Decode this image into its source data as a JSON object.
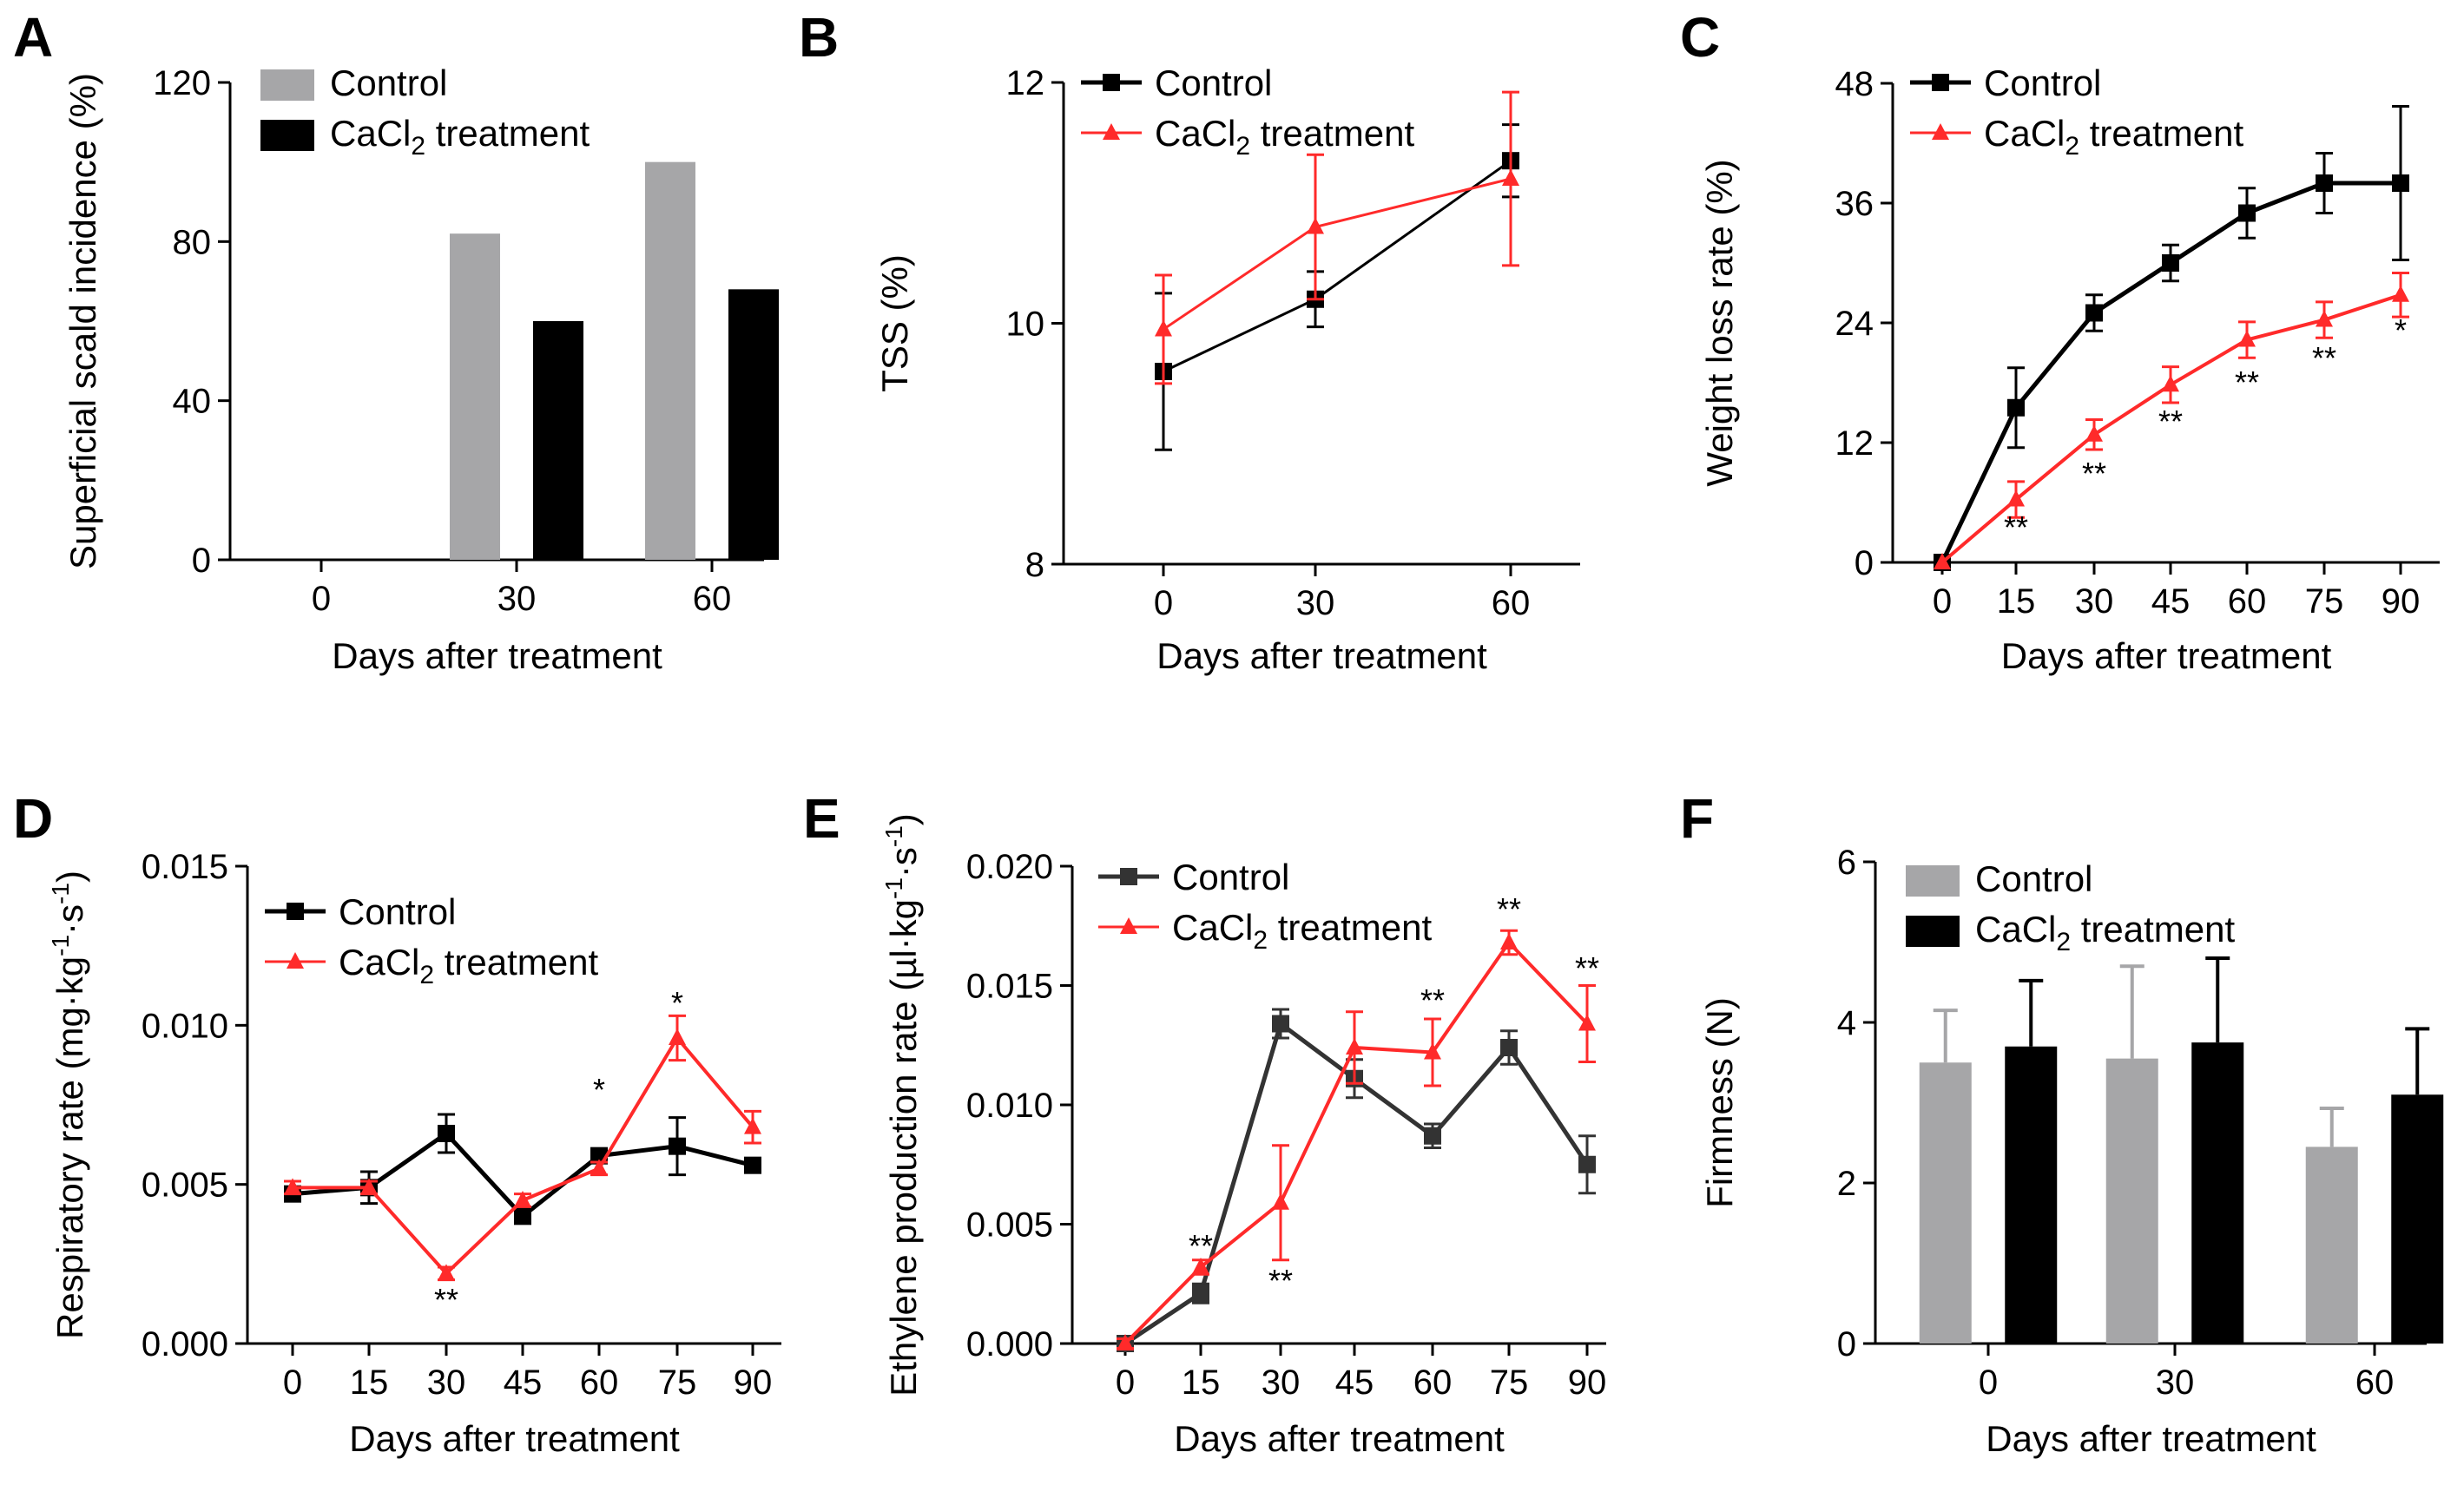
{
  "colors": {
    "control": "#a6a6a8",
    "control_line": "#000000",
    "control_line_E": "#333333",
    "treatment": "#ff2a2a",
    "treatment_bar": "#000000"
  },
  "charts": [
    {
      "type": "bar",
      "panel": "A",
      "xlabel": "Days after treatment",
      "ylabel": "Superficial scald incidence (%)",
      "categories": [
        "0",
        "30",
        "60"
      ],
      "series": [
        {
          "name": "Control",
          "values": [
            0,
            82,
            100
          ],
          "err": null
        },
        {
          "name": "CaCl2 treatment",
          "values": [
            0,
            60,
            68
          ],
          "err": null
        }
      ],
      "ylim": [
        0,
        120
      ],
      "yticks": [
        "0",
        "40",
        "80",
        "120"
      ],
      "legend": {
        "labels": [
          "Control",
          "CaCl",
          "2",
          " treatment"
        ]
      }
    },
    {
      "type": "line",
      "panel": "B",
      "xlabel": "Days after treatment",
      "ylabel": "TSS (%)",
      "x": [
        0,
        30,
        60
      ],
      "xticks": [
        "0",
        "30",
        "60"
      ],
      "series": [
        {
          "name": "Control",
          "values": [
            9.6,
            10.2,
            11.35
          ],
          "err": [
            0.65,
            0.23,
            0.3
          ]
        },
        {
          "name": "CaCl2 treatment",
          "values": [
            9.95,
            10.8,
            11.2
          ],
          "err": [
            0.45,
            0.6,
            0.72
          ]
        }
      ],
      "ylim": [
        8,
        12
      ],
      "yticks": [
        "8",
        "10",
        "12"
      ],
      "legend": {
        "labels": [
          "Control",
          "CaCl",
          "2",
          " treatment"
        ]
      }
    },
    {
      "type": "line",
      "panel": "C",
      "xlabel": "Days after treatment",
      "ylabel": "Weight loss rate (%)",
      "x": [
        0,
        15,
        30,
        45,
        60,
        75,
        90
      ],
      "xticks": [
        "0",
        "15",
        "30",
        "45",
        "60",
        "75",
        "90"
      ],
      "series": [
        {
          "name": "Control",
          "values": [
            0,
            15.5,
            25,
            30,
            35,
            38,
            38
          ],
          "err": [
            0,
            4,
            1.8,
            1.8,
            2.5,
            3,
            7.7
          ]
        },
        {
          "name": "CaCl2 treatment",
          "values": [
            0,
            6.3,
            12.8,
            17.8,
            22.3,
            24.3,
            26.8
          ],
          "err": [
            0,
            1.8,
            1.5,
            1.8,
            1.8,
            1.8,
            2.2
          ]
        }
      ],
      "ylim": [
        0,
        48
      ],
      "yticks": [
        "0",
        "12",
        "24",
        "36",
        "48"
      ],
      "annotations": [
        "**",
        "**",
        "**",
        "**",
        "**",
        "*"
      ],
      "legend": {
        "labels": [
          "Control",
          "CaCl",
          "2",
          " treatment"
        ]
      }
    },
    {
      "type": "line",
      "panel": "D",
      "xlabel": "Days after treatment",
      "ylabel": [
        "Respiratory rate (mg·kg",
        "-1",
        "·s",
        "-1",
        ")"
      ],
      "x": [
        0,
        15,
        30,
        45,
        60,
        75,
        90
      ],
      "xticks": [
        "0",
        "15",
        "30",
        "45",
        "60",
        "75",
        "90"
      ],
      "series": [
        {
          "name": "Control",
          "values": [
            0.0047,
            0.0049,
            0.0066,
            0.004,
            0.0059,
            0.0062,
            0.0056
          ],
          "err": [
            0.0002,
            0.0005,
            0.0006,
            0.0002,
            0.0002,
            0.0009,
            0.0002
          ]
        },
        {
          "name": "CaCl2 treatment",
          "values": [
            0.0049,
            0.0049,
            0.0022,
            0.0045,
            0.0055,
            0.0096,
            0.0068
          ],
          "err": [
            0.0002,
            0.0002,
            0.0002,
            0.0002,
            0.0002,
            0.0007,
            0.0005
          ]
        }
      ],
      "ylim": [
        0,
        0.015
      ],
      "yticks": [
        "0.000",
        "0.005",
        "0.010",
        "0.015"
      ],
      "annotations": [
        "**",
        "*",
        "*"
      ],
      "legend": {
        "labels": [
          "Control",
          "CaCl",
          "2",
          " treatment"
        ]
      }
    },
    {
      "type": "line",
      "panel": "E",
      "xlabel": "Days after treatment",
      "ylabel": [
        "Ethylene production rate (µl·kg",
        "-1",
        "·s",
        "-1",
        ")"
      ],
      "x": [
        0,
        15,
        30,
        45,
        60,
        75,
        90
      ],
      "xticks": [
        "0",
        "15",
        "30",
        "45",
        "60",
        "75",
        "90"
      ],
      "series": [
        {
          "name": "Control",
          "values": [
            0,
            0.0021,
            0.0134,
            0.0111,
            0.0087,
            0.0124,
            0.0075
          ],
          "err": [
            0.0002,
            0.0004,
            0.0006,
            0.0008,
            0.0005,
            0.0007,
            0.0012
          ]
        },
        {
          "name": "CaCl2 treatment",
          "values": [
            0,
            0.0032,
            0.0059,
            0.0124,
            0.0122,
            0.0168,
            0.0134
          ],
          "err": [
            0.0002,
            0.0003,
            0.0024,
            0.0015,
            0.0014,
            0.0005,
            0.0016
          ]
        }
      ],
      "ylim": [
        0,
        0.02
      ],
      "yticks": [
        "0.000",
        "0.005",
        "0.010",
        "0.015",
        "0.020"
      ],
      "annotations": [
        "**",
        "**",
        "**",
        "**",
        "**"
      ],
      "legend": {
        "labels": [
          "Control",
          "CaCl",
          "2",
          " treatment"
        ]
      }
    },
    {
      "type": "bar",
      "panel": "F",
      "xlabel": "Days after treatment",
      "ylabel": "Firmness (N)",
      "categories": [
        "0",
        "30",
        "60"
      ],
      "series": [
        {
          "name": "Control",
          "values": [
            3.5,
            3.55,
            2.45
          ],
          "err": [
            0.65,
            1.15,
            0.48
          ]
        },
        {
          "name": "CaCl2 treatment",
          "values": [
            3.7,
            3.75,
            3.1
          ],
          "err": [
            0.82,
            1.05,
            0.82
          ]
        }
      ],
      "ylim": [
        0,
        6
      ],
      "yticks": [
        "0",
        "2",
        "4",
        "6"
      ],
      "legend": {
        "labels": [
          "Control",
          "CaCl",
          "2",
          " treatment"
        ]
      }
    }
  ]
}
